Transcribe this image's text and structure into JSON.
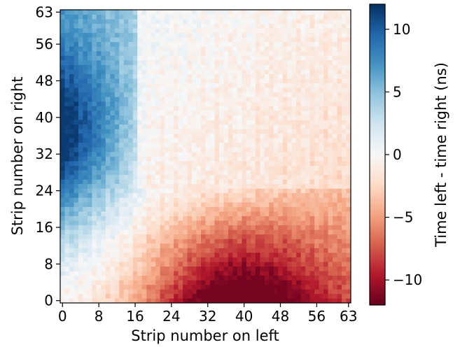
{
  "chart_data": {
    "type": "heatmap",
    "title": "",
    "xlabel": "Strip number on left",
    "ylabel": "Strip number on right",
    "colorbar_label": "Time left - time right (ns)",
    "colormap": "RdBu",
    "colormap_stops": [
      "#67001f",
      "#b2182b",
      "#d6604d",
      "#f4a582",
      "#fddbc7",
      "#f7f7f7",
      "#d1e5f0",
      "#92c5de",
      "#4393c3",
      "#2166ac",
      "#053061"
    ],
    "grid": false,
    "x_range": [
      0,
      63
    ],
    "y_range": [
      0,
      63
    ],
    "x_ticks": [
      "0",
      "8",
      "16",
      "24",
      "32",
      "40",
      "48",
      "56",
      "63"
    ],
    "y_ticks": [
      "0",
      "8",
      "16",
      "24",
      "32",
      "40",
      "48",
      "56",
      "63"
    ],
    "color_range": [
      -12,
      12
    ],
    "colorbar_ticks": [
      "10",
      "5",
      "0",
      "−5",
      "−10"
    ],
    "cell_model": {
      "description": "value(left, right) in ns, approximated from the image",
      "corner_values": {
        "left0_right0": 0.0,
        "left0_right36": 9.5,
        "left0_right63": 7.0,
        "left16_right40": 7.0,
        "left24_right40": 1.0,
        "left40_right2": -10.5,
        "left63_right0": -8.5,
        "left63_right63": 0.5
      }
    }
  }
}
